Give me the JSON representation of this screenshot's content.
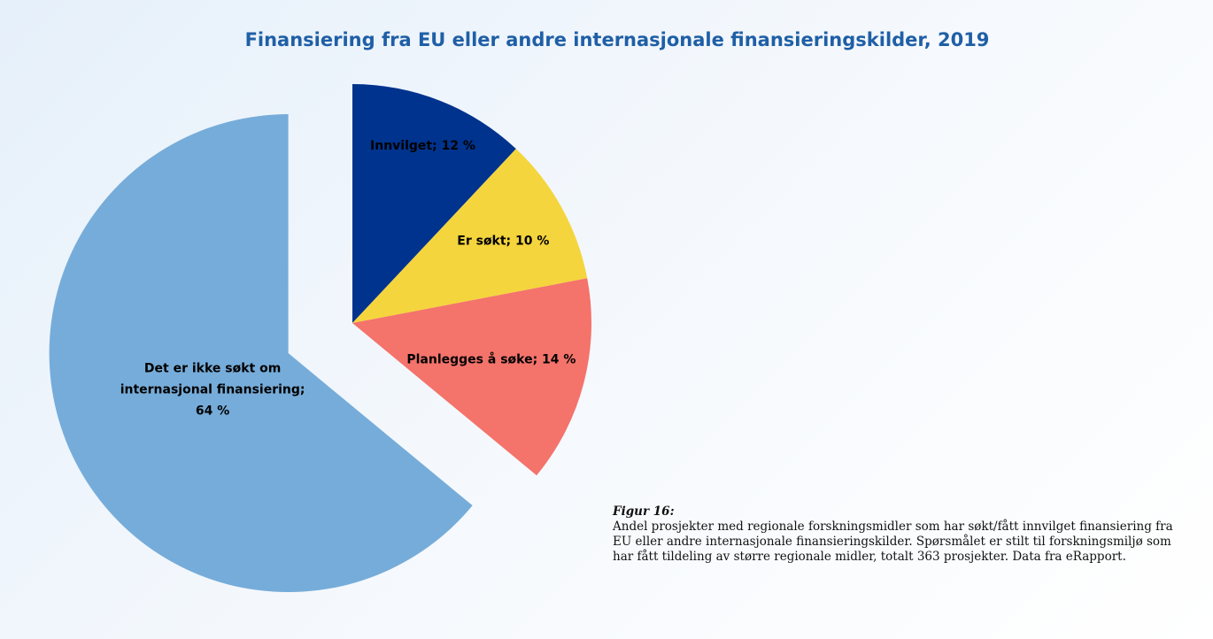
{
  "chart_data": {
    "type": "pie",
    "title": "Finansiering fra EU eller andre internasjonale finansieringskilder, 2019",
    "values": [
      12,
      10,
      14,
      64
    ],
    "value_labels": [
      "Innvilget; 12 %",
      "Er søkt; 10 %",
      "Planlegges å søke; 14 %",
      "Det er ikke søkt om\ninternasjonal finansiering;\n64 %"
    ],
    "colors": [
      "#00338d",
      "#f5d53d",
      "#f4736b",
      "#76acd9"
    ],
    "exploded": [
      false,
      false,
      false,
      true
    ],
    "caption_title": "Figur 16:",
    "caption": "Andel prosjekter med regionale forskningsmidler som har søkt/fått innvilget finansiering fra EU eller andre internasjonale finansieringskilder. Spørsmålet er stilt til forskningsmiljø som har fått tildeling av større regionale midler, totalt 363 prosjekter. Data fra eRapport."
  }
}
